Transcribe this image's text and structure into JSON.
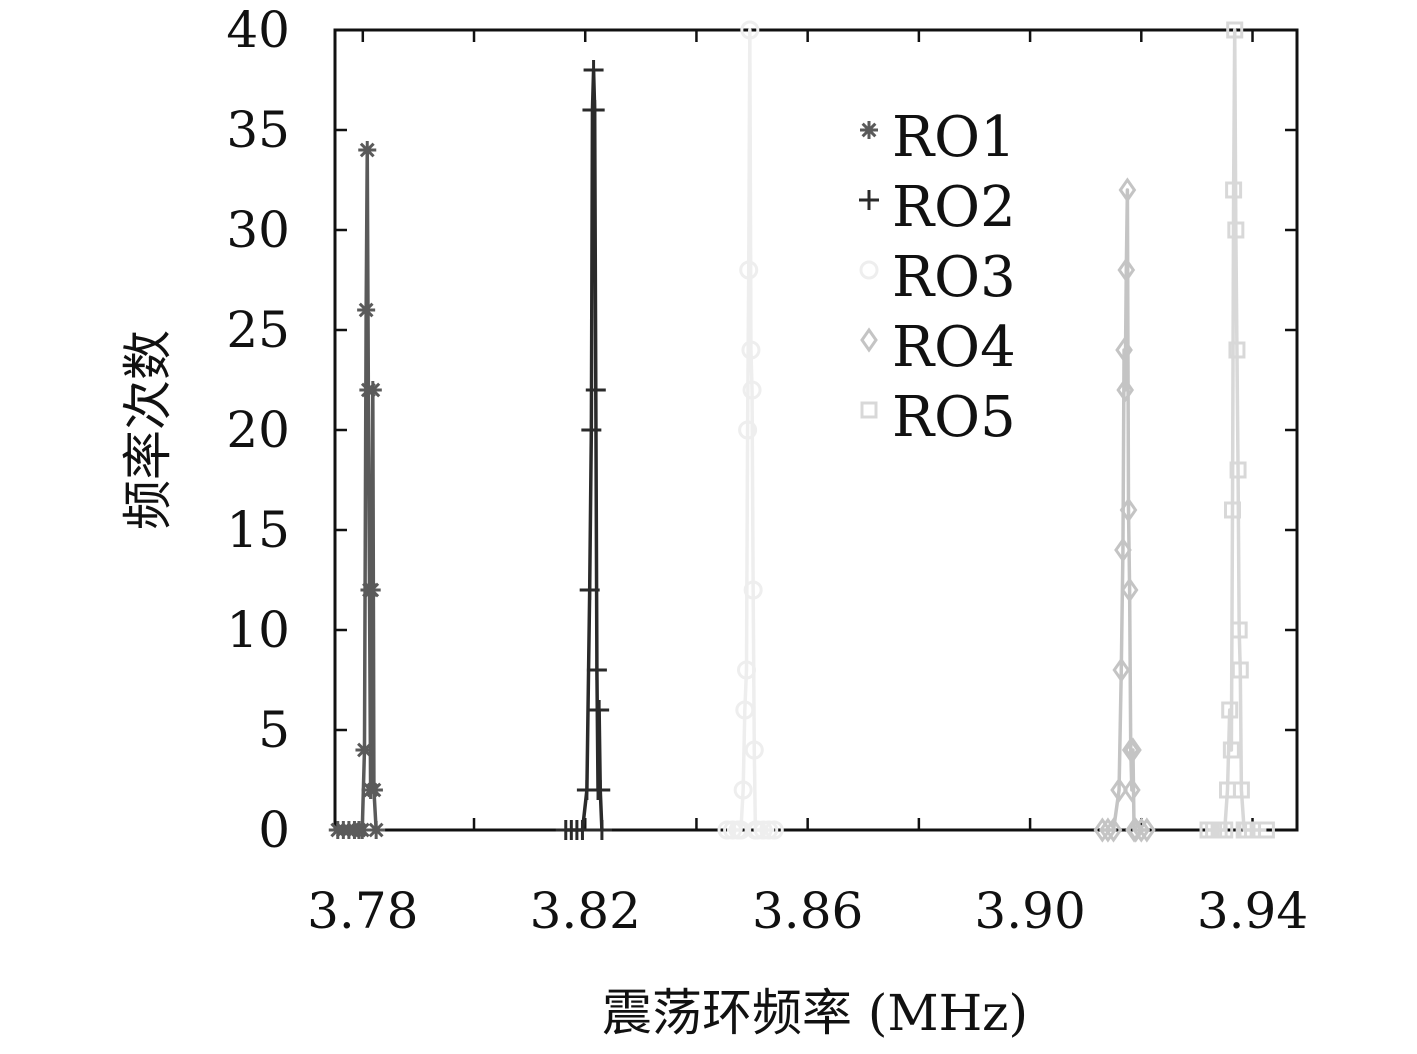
{
  "chart_data": {
    "type": "line",
    "title": "",
    "xlabel": "震荡环频率 (MHz)",
    "ylabel": "频率次数",
    "xlim": [
      3.775,
      3.948
    ],
    "ylim": [
      0,
      40
    ],
    "x_ticks": [
      "3.78",
      "3.82",
      "3.86",
      "3.90",
      "3.94"
    ],
    "x_tick_values": [
      3.78,
      3.82,
      3.86,
      3.9,
      3.94
    ],
    "y_ticks": [
      "0",
      "5",
      "10",
      "15",
      "20",
      "25",
      "30",
      "35",
      "40"
    ],
    "y_tick_values": [
      0,
      5,
      10,
      15,
      20,
      25,
      30,
      35,
      40
    ],
    "grid": false,
    "legend_position": "top-right",
    "series": [
      {
        "name": "RO1",
        "color": "#5a5a5a",
        "marker": "asterisk-icon",
        "x": [
          3.7755,
          3.7765,
          3.7775,
          3.7785,
          3.7793,
          3.7799,
          3.7803,
          3.7806,
          3.7808,
          3.781,
          3.7812,
          3.7814,
          3.7816,
          3.7818,
          3.782,
          3.7824
        ],
        "y": [
          0,
          0,
          0,
          0,
          0,
          0,
          4,
          26,
          34,
          22,
          12,
          2,
          12,
          22,
          2,
          0
        ]
      },
      {
        "name": "RO2",
        "color": "#2a2a2a",
        "marker": "plus-icon",
        "x": [
          3.8165,
          3.8175,
          3.8185,
          3.8195,
          3.8203,
          3.8208,
          3.8211,
          3.8213,
          3.8215,
          3.8217,
          3.8219,
          3.8221,
          3.8223,
          3.8225,
          3.8227,
          3.823
        ],
        "y": [
          0,
          0,
          0,
          0,
          2,
          12,
          20,
          36,
          38,
          36,
          22,
          8,
          2,
          6,
          2,
          0
        ]
      },
      {
        "name": "RO3",
        "color": "#eeeeee",
        "marker": "circle-icon",
        "x": [
          3.8455,
          3.8465,
          3.8475,
          3.848,
          3.8484,
          3.8487,
          3.849,
          3.8492,
          3.8494,
          3.8496,
          3.8498,
          3.85,
          3.8502,
          3.8504,
          3.8506,
          3.851,
          3.852,
          3.853,
          3.854
        ],
        "y": [
          0,
          0,
          0,
          0,
          2,
          6,
          8,
          20,
          28,
          40,
          24,
          22,
          12,
          4,
          0,
          0,
          0,
          0,
          0
        ]
      },
      {
        "name": "RO4",
        "color": "#c4c4c4",
        "marker": "diamond-icon",
        "x": [
          3.913,
          3.914,
          3.915,
          3.916,
          3.9164,
          3.9167,
          3.9169,
          3.9171,
          3.9173,
          3.9175,
          3.9177,
          3.9179,
          3.9181,
          3.9183,
          3.9185,
          3.9187,
          3.919,
          3.92,
          3.921
        ],
        "y": [
          0,
          0,
          0,
          2,
          8,
          14,
          24,
          22,
          28,
          32,
          16,
          12,
          4,
          2,
          4,
          0,
          0,
          0,
          0
        ]
      },
      {
        "name": "RO5",
        "color": "#d8d8d8",
        "marker": "square-icon",
        "x": [
          3.932,
          3.933,
          3.934,
          3.935,
          3.9355,
          3.9359,
          3.9362,
          3.9364,
          3.9366,
          3.9368,
          3.937,
          3.9372,
          3.9374,
          3.9376,
          3.9378,
          3.938,
          3.9385,
          3.939,
          3.94,
          3.9425
        ],
        "y": [
          0,
          0,
          0,
          0,
          2,
          6,
          4,
          16,
          32,
          40,
          30,
          24,
          18,
          10,
          8,
          2,
          0,
          0,
          0,
          0
        ]
      }
    ]
  }
}
